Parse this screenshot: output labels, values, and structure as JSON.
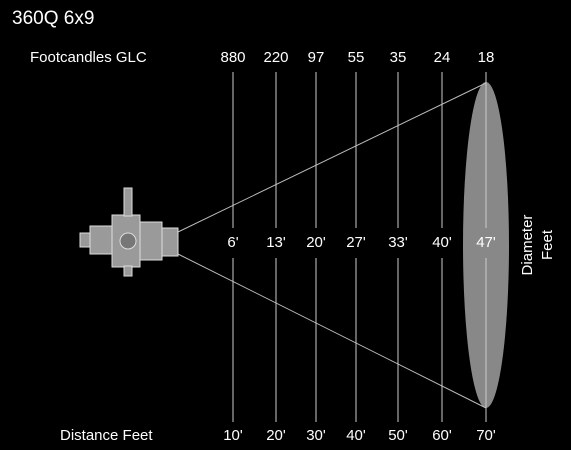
{
  "title": "360Q 6x9",
  "footcandles_label": "Footcandles GLC",
  "footcandles": [
    880,
    220,
    97,
    55,
    35,
    24,
    18
  ],
  "diameters": [
    "6'",
    "13'",
    "20'",
    "27'",
    "33'",
    "40'",
    "47'"
  ],
  "distance_label": "Distance Feet",
  "distances": [
    "10'",
    "20'",
    "30'",
    "40'",
    "50'",
    "60'",
    "70'"
  ],
  "diameter_label": [
    "Diameter",
    "Feet"
  ]
}
